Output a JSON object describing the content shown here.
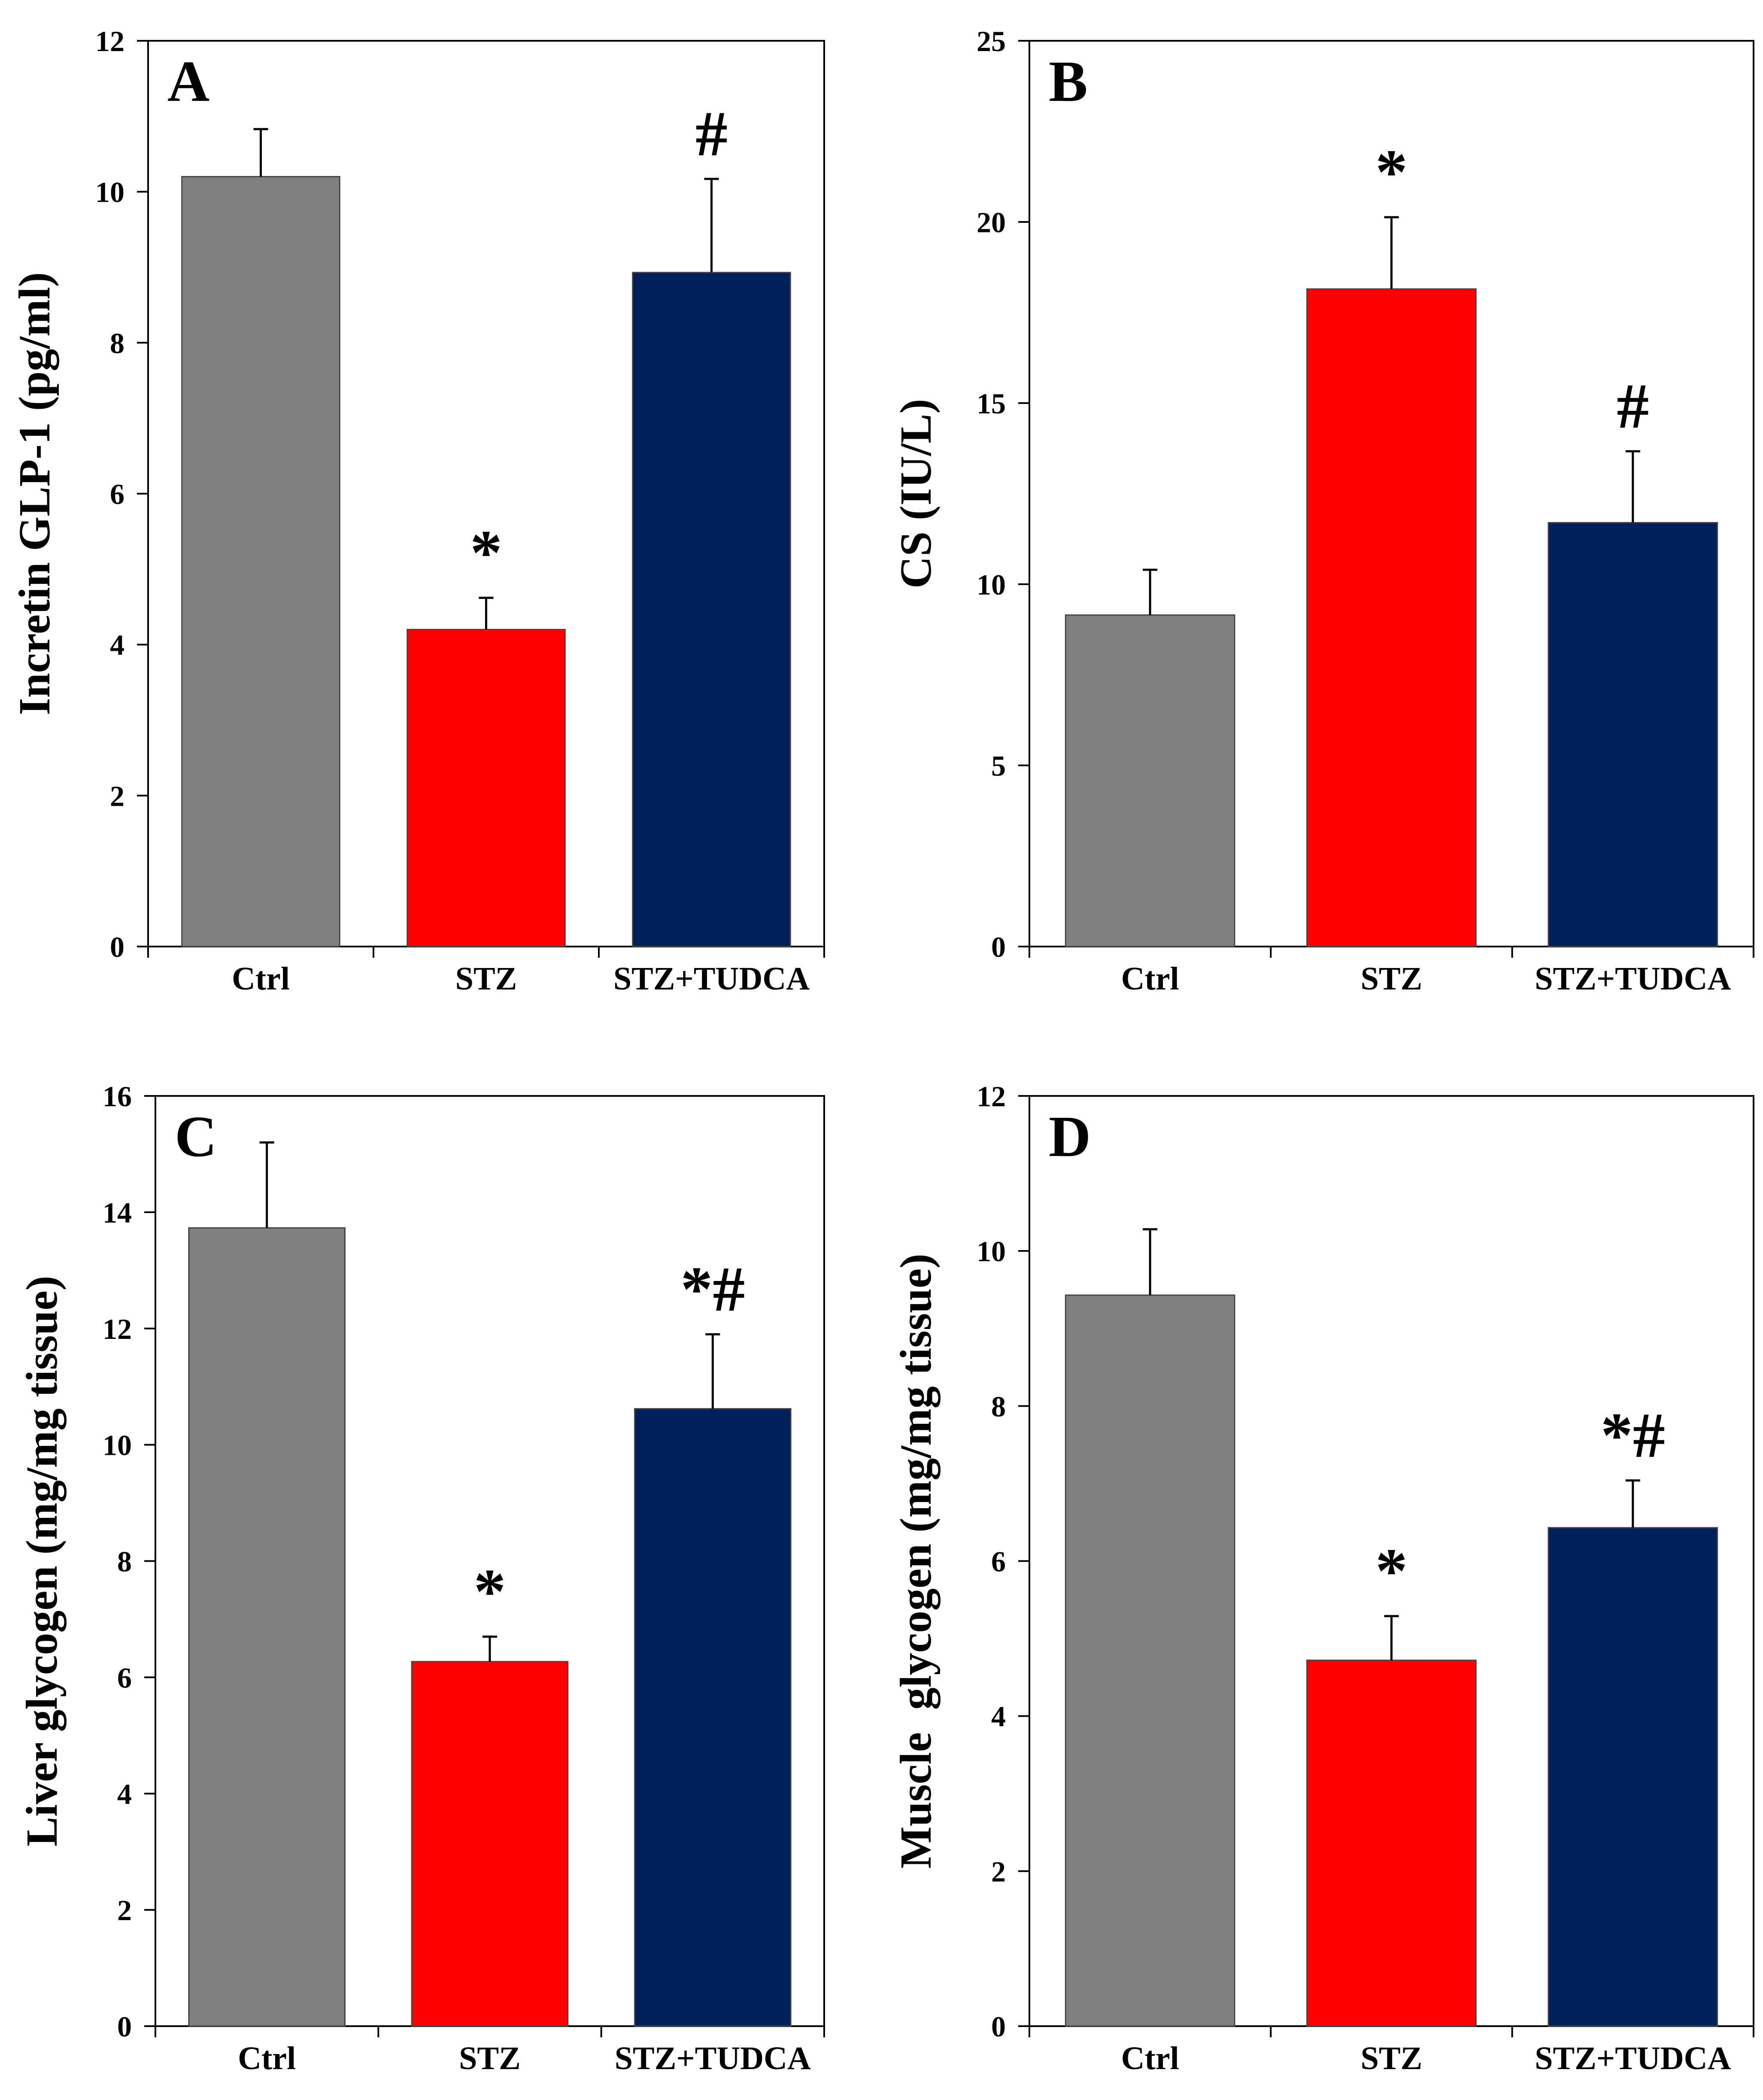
{
  "figure": {
    "bar_colors": [
      "#808080",
      "#ff0000",
      "#00205b"
    ]
  },
  "chart_data": [
    {
      "type": "bar",
      "panel_label": "A",
      "title": "",
      "xlabel": "",
      "ylabel": "Incretin GLP-1 (pg/ml)",
      "categories": [
        "Ctrl",
        "STZ",
        "STZ+TUDCA"
      ],
      "values": [
        10.2,
        4.2,
        8.93
      ],
      "errors": [
        0.63,
        0.42,
        1.24
      ],
      "annotations": [
        "",
        "*",
        "#"
      ],
      "ylim": [
        0,
        12
      ],
      "yticks": [
        "0",
        "2",
        "4",
        "6",
        "8",
        "10",
        "12"
      ],
      "grid": false
    },
    {
      "type": "bar",
      "panel_label": "B",
      "title": "",
      "xlabel": "",
      "ylabel": "CS (IU/L)",
      "categories": [
        "Ctrl",
        "STZ",
        "STZ+TUDCA"
      ],
      "values": [
        9.15,
        18.15,
        11.7
      ],
      "errors": [
        1.25,
        1.98,
        1.97
      ],
      "annotations": [
        "",
        "*",
        "#"
      ],
      "ylim": [
        0,
        25
      ],
      "yticks": [
        "0",
        "5",
        "10",
        "15",
        "20",
        "25"
      ],
      "grid": false
    },
    {
      "type": "bar",
      "panel_label": "C",
      "title": "",
      "xlabel": "",
      "ylabel": "Liver glycogen (mg/mg tissue)",
      "categories": [
        "Ctrl",
        "STZ",
        "STZ+TUDCA"
      ],
      "values": [
        13.73,
        6.27,
        10.62
      ],
      "errors": [
        1.47,
        0.43,
        1.28
      ],
      "annotations": [
        "",
        "*",
        "*#"
      ],
      "ylim": [
        0,
        16
      ],
      "yticks": [
        "0",
        "2",
        "4",
        "6",
        "8",
        "10",
        "12",
        "14",
        "16"
      ],
      "grid": false
    },
    {
      "type": "bar",
      "panel_label": "D",
      "title": "",
      "xlabel": "",
      "ylabel": "Muscle  glycogen (mg/mg tissue)",
      "categories": [
        "Ctrl",
        "STZ",
        "STZ+TUDCA"
      ],
      "values": [
        9.43,
        4.72,
        6.43
      ],
      "errors": [
        0.85,
        0.57,
        0.61
      ],
      "annotations": [
        "",
        "*",
        "*#"
      ],
      "ylim": [
        0,
        12
      ],
      "yticks": [
        "0",
        "2",
        "4",
        "6",
        "8",
        "10",
        "12"
      ],
      "grid": false
    }
  ]
}
